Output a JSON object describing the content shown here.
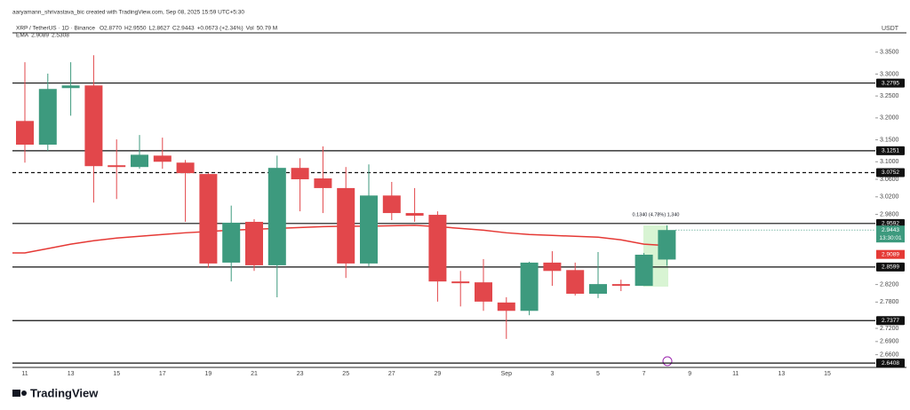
{
  "header": {
    "author_line": "aaryamann_shrivastava_bic created with TradingView.com, Sep 08, 2025 15:59 UTC+5:30",
    "symbol": "XRP / TetherUS · 1D · Binance",
    "legend": [
      "O2.8770",
      "H2.9550",
      "L2.8627",
      "C2.9443",
      "+0.0673 (+2.34%)",
      "Vol",
      "50.79 M"
    ],
    "ema_legend": [
      "EMA",
      "2.9089",
      "2.5308"
    ],
    "currency": "USDT",
    "brand": "TradingView"
  },
  "chart_data": {
    "type": "candlestick",
    "categories": [
      "11",
      null,
      "13",
      null,
      "15",
      null,
      "17",
      null,
      "19",
      null,
      "21",
      null,
      "23",
      null,
      "25",
      null,
      "27",
      null,
      "29",
      null,
      null,
      "Sep",
      null,
      "3",
      null,
      "5",
      null,
      "7",
      null,
      "9",
      null,
      "11",
      null,
      "13",
      null,
      "15"
    ],
    "open": [
      3.193,
      3.139,
      3.268,
      3.274,
      3.092,
      3.088,
      3.114,
      3.098,
      3.072,
      2.87,
      2.963,
      2.864,
      3.086,
      3.062,
      3.04,
      2.868,
      3.023,
      2.983,
      2.979,
      2.827,
      2.825,
      2.779,
      2.76,
      2.87,
      2.853,
      2.799,
      2.821,
      2.817,
      2.877,
      null,
      null,
      null,
      null,
      null,
      null,
      null
    ],
    "high": [
      3.327,
      3.301,
      3.327,
      3.343,
      3.151,
      3.161,
      3.155,
      3.104,
      3.074,
      3.0,
      2.969,
      3.114,
      3.108,
      3.135,
      3.088,
      3.094,
      3.054,
      3.04,
      2.987,
      2.851,
      2.878,
      2.791,
      2.872,
      2.896,
      2.87,
      2.894,
      2.831,
      2.892,
      2.955,
      null,
      null,
      null,
      null,
      null,
      null,
      null
    ],
    "low": [
      3.098,
      3.125,
      3.205,
      3.007,
      3.015,
      3.084,
      3.084,
      2.963,
      2.858,
      2.827,
      2.851,
      2.791,
      2.987,
      2.983,
      2.835,
      2.862,
      2.967,
      2.963,
      2.781,
      2.77,
      2.76,
      2.696,
      2.75,
      2.817,
      2.795,
      2.789,
      2.805,
      2.817,
      2.8627,
      null,
      null,
      null,
      null,
      null,
      null,
      null
    ],
    "close": [
      3.139,
      3.266,
      3.274,
      3.09,
      3.088,
      3.116,
      3.1,
      3.074,
      2.868,
      2.961,
      2.864,
      3.086,
      3.06,
      3.04,
      2.868,
      3.023,
      2.983,
      2.977,
      2.827,
      2.823,
      2.781,
      2.76,
      2.87,
      2.851,
      2.799,
      2.821,
      2.817,
      2.888,
      2.9443,
      null,
      null,
      null,
      null,
      null,
      null,
      null
    ],
    "up_color": "#3d9a7e",
    "down_color": "#e2474b",
    "ema": {
      "name": "EMA",
      "color": "#e53935",
      "values": [
        2.892,
        2.902,
        2.912,
        2.92,
        2.926,
        2.93,
        2.934,
        2.938,
        2.941,
        2.944,
        2.946,
        2.948,
        2.95,
        2.952,
        2.953,
        2.953,
        2.954,
        2.955,
        2.952,
        2.948,
        2.944,
        2.938,
        2.934,
        2.932,
        2.93,
        2.928,
        2.922,
        2.912,
        2.9089,
        null,
        null,
        null,
        null,
        null,
        null,
        null
      ]
    },
    "ylim": [
      2.631,
      3.394
    ],
    "yticks": [
      {
        "value": 3.35,
        "label": "3.3500"
      },
      {
        "value": 3.3,
        "label": "3.3000"
      },
      {
        "value": 3.25,
        "label": "3.2500"
      },
      {
        "value": 3.2,
        "label": "3.2000"
      },
      {
        "value": 3.15,
        "label": "3.1500"
      },
      {
        "value": 3.1,
        "label": "3.1000"
      },
      {
        "value": 3.06,
        "label": "3.0600"
      },
      {
        "value": 3.02,
        "label": "3.0200"
      },
      {
        "value": 2.98,
        "label": "2.9800"
      },
      {
        "value": 2.82,
        "label": "2.8200"
      },
      {
        "value": 2.78,
        "label": "2.7800"
      },
      {
        "value": 2.72,
        "label": "2.7200"
      },
      {
        "value": 2.69,
        "label": "2.6900"
      },
      {
        "value": 2.66,
        "label": "2.6600"
      }
    ],
    "levels": [
      {
        "value": 3.2795,
        "label": "3.2795",
        "style": "solid"
      },
      {
        "value": 3.1251,
        "label": "3.1251",
        "style": "solid"
      },
      {
        "value": 3.0752,
        "label": "3.0752",
        "style": "dashed"
      },
      {
        "value": 2.9592,
        "label": "2.9592",
        "style": "solid"
      },
      {
        "value": 2.8599,
        "label": "2.8599",
        "style": "solid"
      },
      {
        "value": 2.7377,
        "label": "2.7377",
        "style": "solid"
      },
      {
        "value": 2.6408,
        "label": "2.6408",
        "style": "solid"
      }
    ],
    "last_price": {
      "value": 2.9443,
      "label": "2.9443",
      "timer": "13:30:01",
      "color": "#3d9a7e"
    },
    "ema_price": {
      "value": 2.9089,
      "label": "2.9089",
      "color": "#e53935"
    },
    "annotation": "0.1340 (4.78%) 1,340"
  }
}
